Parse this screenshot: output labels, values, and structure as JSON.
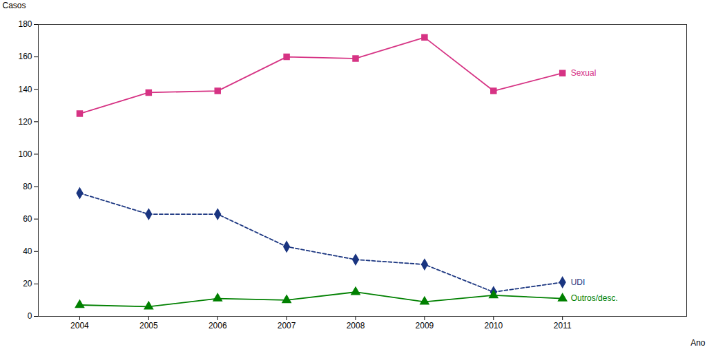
{
  "chart_data": {
    "type": "line",
    "x": [
      2004,
      2005,
      2006,
      2007,
      2008,
      2009,
      2010,
      2011
    ],
    "series": [
      {
        "name": "Sexual",
        "color": "#d63384",
        "marker": "square",
        "line_style": "solid",
        "values": [
          125,
          138,
          139,
          160,
          159,
          172,
          139,
          150
        ]
      },
      {
        "name": "UDI",
        "color": "#1a3580",
        "marker": "diamond",
        "line_style": "dashed",
        "values": [
          76,
          63,
          63,
          43,
          35,
          32,
          15,
          21
        ]
      },
      {
        "name": "Outros/desc.",
        "color": "#008000",
        "marker": "triangle",
        "line_style": "solid",
        "values": [
          7,
          6,
          11,
          10,
          15,
          9,
          13,
          11
        ]
      }
    ],
    "xlabel": "Ano",
    "ylabel": "Casos",
    "xlim": [
      2003.4,
      2012.8
    ],
    "xticks": [
      2004,
      2005,
      2006,
      2007,
      2008,
      2009,
      2010,
      2011
    ],
    "ylim": [
      0,
      180
    ],
    "yticks": [
      0,
      20,
      40,
      60,
      80,
      100,
      120,
      140,
      160,
      180
    ],
    "grid": false
  }
}
